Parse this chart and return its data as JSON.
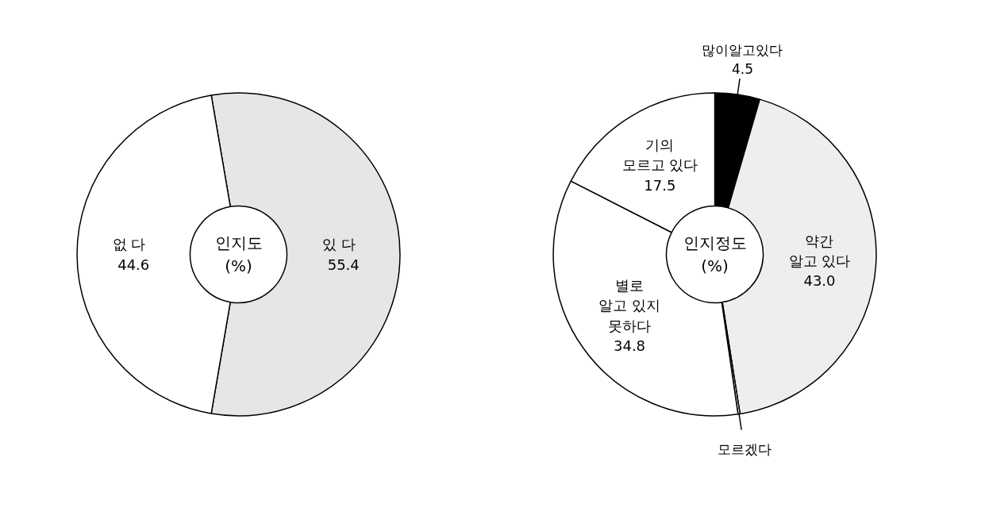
{
  "chart_data": [
    {
      "type": "donut",
      "title": "인지도\n(%)",
      "categories": [
        "있   다",
        "없   다"
      ],
      "values": [
        55.4,
        44.6
      ],
      "colors": [
        "#e6e6e6",
        "#ffffff"
      ],
      "value_labels": [
        "55.4",
        "44.6"
      ]
    },
    {
      "type": "donut",
      "title": "인지정도\n(%)",
      "categories": [
        "많이알고있다",
        "약간\n알고 있다",
        "모르겠다",
        "별로\n알고 있지\n못하다",
        "기의\n모르고 있다"
      ],
      "values": [
        4.5,
        43.0,
        0.2,
        34.8,
        17.5
      ],
      "colors": [
        "#000000",
        "#eeeeee",
        "#ffffff",
        "#ffffff",
        "#ffffff"
      ],
      "value_labels": [
        "4.5",
        "43.0",
        null,
        "34.8",
        "17.5"
      ]
    }
  ]
}
